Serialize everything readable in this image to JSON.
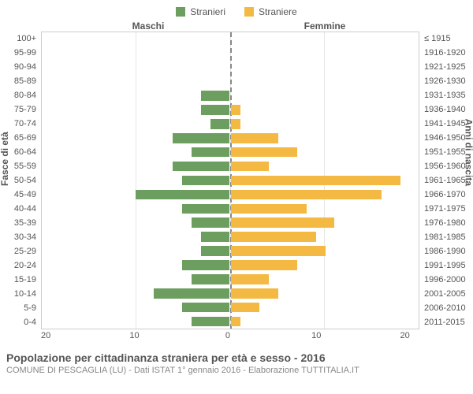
{
  "legend": {
    "male": {
      "label": "Stranieri",
      "color": "#6b9e5f"
    },
    "female": {
      "label": "Straniere",
      "color": "#f4b942"
    }
  },
  "top_labels": {
    "left": "Maschi",
    "right": "Femmine"
  },
  "y_axis_left_title": "Fasce di età",
  "y_axis_right_title": "Anni di nascita",
  "x_axis": {
    "max": 20,
    "ticks": [
      "20",
      "10",
      "0",
      "10",
      "20"
    ]
  },
  "rows": [
    {
      "age": "100+",
      "birth": "≤ 1915",
      "m": 0,
      "f": 0
    },
    {
      "age": "95-99",
      "birth": "1916-1920",
      "m": 0,
      "f": 0
    },
    {
      "age": "90-94",
      "birth": "1921-1925",
      "m": 0,
      "f": 0
    },
    {
      "age": "85-89",
      "birth": "1926-1930",
      "m": 0,
      "f": 0
    },
    {
      "age": "80-84",
      "birth": "1931-1935",
      "m": 3,
      "f": 0
    },
    {
      "age": "75-79",
      "birth": "1936-1940",
      "m": 3,
      "f": 1
    },
    {
      "age": "70-74",
      "birth": "1941-1945",
      "m": 2,
      "f": 1
    },
    {
      "age": "65-69",
      "birth": "1946-1950",
      "m": 6,
      "f": 5
    },
    {
      "age": "60-64",
      "birth": "1951-1955",
      "m": 4,
      "f": 7
    },
    {
      "age": "55-59",
      "birth": "1956-1960",
      "m": 6,
      "f": 4
    },
    {
      "age": "50-54",
      "birth": "1961-1965",
      "m": 5,
      "f": 18
    },
    {
      "age": "45-49",
      "birth": "1966-1970",
      "m": 10,
      "f": 16
    },
    {
      "age": "40-44",
      "birth": "1971-1975",
      "m": 5,
      "f": 8
    },
    {
      "age": "35-39",
      "birth": "1976-1980",
      "m": 4,
      "f": 11
    },
    {
      "age": "30-34",
      "birth": "1981-1985",
      "m": 3,
      "f": 9
    },
    {
      "age": "25-29",
      "birth": "1986-1990",
      "m": 3,
      "f": 10
    },
    {
      "age": "20-24",
      "birth": "1991-1995",
      "m": 5,
      "f": 7
    },
    {
      "age": "15-19",
      "birth": "1996-2000",
      "m": 4,
      "f": 4
    },
    {
      "age": "10-14",
      "birth": "2001-2005",
      "m": 8,
      "f": 5
    },
    {
      "age": "5-9",
      "birth": "2006-2010",
      "m": 5,
      "f": 3
    },
    {
      "age": "0-4",
      "birth": "2011-2015",
      "m": 4,
      "f": 1
    }
  ],
  "colors": {
    "grid": "#e6e6e6",
    "border": "#cccccc",
    "centerline": "#888888",
    "background": "#ffffff"
  },
  "footer": {
    "title": "Popolazione per cittadinanza straniera per età e sesso - 2016",
    "subtitle": "COMUNE DI PESCAGLIA (LU) - Dati ISTAT 1° gennaio 2016 - Elaborazione TUTTITALIA.IT"
  }
}
